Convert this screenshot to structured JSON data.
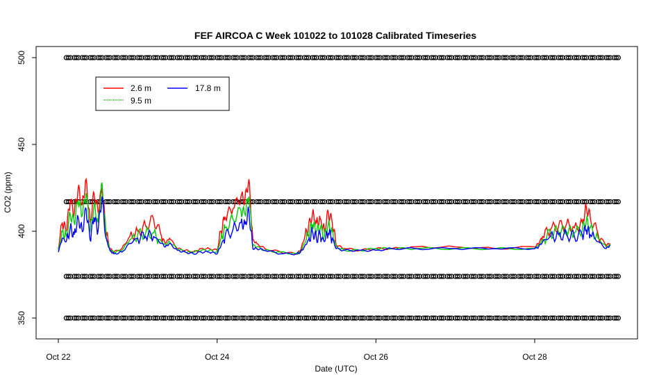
{
  "chart_data": {
    "type": "line",
    "title": "FEF AIRCOA C  Week 101022 to 101028  Calibrated Timeseries",
    "xlabel": "Date (UTC)",
    "ylabel": "CO2 (ppm)",
    "x_unit": "days (Oct 22 = 0)",
    "xlim": [
      -0.2,
      7.2
    ],
    "ylim": [
      337,
      505
    ],
    "x_ticks": [
      {
        "value": 0,
        "label": "Oct 22"
      },
      {
        "value": 2,
        "label": "Oct 24"
      },
      {
        "value": 4,
        "label": "Oct 26"
      },
      {
        "value": 6,
        "label": "Oct 28"
      }
    ],
    "y_ticks": [
      {
        "value": 350,
        "label": "350"
      },
      {
        "value": 400,
        "label": "400"
      },
      {
        "value": 450,
        "label": "450"
      },
      {
        "value": 500,
        "label": "500"
      }
    ],
    "legend": {
      "placement": "top-left",
      "entries": [
        {
          "name": "2.6 m",
          "color": "#ff0000"
        },
        {
          "name": "9.5 m",
          "color": "#00cc00"
        },
        {
          "name": "17.8 m",
          "color": "#0000ff"
        }
      ]
    },
    "grid": false,
    "calibration_marker_levels": [
      500,
      417,
      374,
      350
    ],
    "calibration_marker_x": {
      "start": 0.1,
      "end": 7.05,
      "step": 0.1
    },
    "series": [
      {
        "name": "2.6 m",
        "color": "#ff0000",
        "x": [
          0,
          0.05,
          0.1,
          0.15,
          0.2,
          0.25,
          0.3,
          0.35,
          0.4,
          0.45,
          0.5,
          0.55,
          0.6,
          0.65,
          0.7,
          0.8,
          0.9,
          1.0,
          1.1,
          1.2,
          1.3,
          1.35,
          1.4,
          1.5,
          1.6,
          1.7,
          1.8,
          1.9,
          2.0,
          2.05,
          2.1,
          2.2,
          2.3,
          2.35,
          2.4,
          2.45,
          2.5,
          2.6,
          2.8,
          3.0,
          3.05,
          3.1,
          3.15,
          3.2,
          3.25,
          3.3,
          3.35,
          3.4,
          3.45,
          3.5,
          3.6,
          3.8,
          4.0,
          4.2,
          4.5,
          5.0,
          5.5,
          6.0,
          6.05,
          6.1,
          6.2,
          6.3,
          6.4,
          6.5,
          6.6,
          6.65,
          6.7,
          6.8,
          6.9,
          6.95
        ],
        "values": [
          390,
          405,
          400,
          418,
          410,
          425,
          415,
          430,
          405,
          422,
          411,
          425,
          400,
          390,
          388,
          390,
          397,
          400,
          403,
          407,
          397,
          393,
          396,
          390,
          389,
          388,
          390,
          390,
          389,
          400,
          408,
          413,
          420,
          418,
          430,
          395,
          393,
          390,
          388,
          387,
          389,
          396,
          402,
          410,
          405,
          407,
          400,
          411,
          405,
          392,
          390,
          389,
          390,
          390,
          391,
          391,
          390,
          391,
          393,
          397,
          401,
          403,
          404,
          402,
          405,
          414,
          408,
          398,
          392,
          393
        ]
      },
      {
        "name": "9.5 m",
        "color": "#00cc00",
        "x": [
          0,
          0.05,
          0.1,
          0.15,
          0.2,
          0.25,
          0.3,
          0.35,
          0.4,
          0.45,
          0.5,
          0.55,
          0.6,
          0.65,
          0.7,
          0.8,
          0.9,
          1.0,
          1.1,
          1.2,
          1.3,
          1.35,
          1.4,
          1.5,
          1.6,
          1.7,
          1.8,
          1.9,
          2.0,
          2.05,
          2.1,
          2.2,
          2.3,
          2.35,
          2.4,
          2.45,
          2.5,
          2.6,
          2.8,
          3.0,
          3.05,
          3.1,
          3.15,
          3.2,
          3.25,
          3.3,
          3.35,
          3.4,
          3.45,
          3.5,
          3.6,
          3.8,
          4.0,
          4.2,
          4.5,
          5.0,
          5.5,
          6.0,
          6.05,
          6.1,
          6.2,
          6.3,
          6.4,
          6.5,
          6.6,
          6.65,
          6.7,
          6.8,
          6.9,
          6.95
        ],
        "values": [
          389,
          400,
          397,
          410,
          405,
          418,
          409,
          422,
          400,
          415,
          405,
          428,
          398,
          389,
          388,
          389,
          395,
          398,
          399,
          399,
          394,
          392,
          394,
          390,
          388,
          388,
          389,
          389,
          388,
          396,
          402,
          407,
          412,
          410,
          420,
          392,
          391,
          389,
          388,
          387,
          388,
          393,
          398,
          404,
          400,
          402,
          397,
          404,
          400,
          391,
          389,
          389,
          390,
          390,
          390,
          390,
          390,
          390,
          392,
          395,
          399,
          400,
          400,
          399,
          401,
          406,
          402,
          396,
          391,
          392
        ]
      },
      {
        "name": "17.8 m",
        "color": "#0000ff",
        "x": [
          0,
          0.05,
          0.1,
          0.15,
          0.2,
          0.25,
          0.3,
          0.35,
          0.4,
          0.45,
          0.5,
          0.55,
          0.6,
          0.65,
          0.7,
          0.8,
          0.9,
          1.0,
          1.1,
          1.2,
          1.3,
          1.35,
          1.4,
          1.5,
          1.6,
          1.7,
          1.8,
          1.9,
          2.0,
          2.05,
          2.1,
          2.2,
          2.3,
          2.35,
          2.4,
          2.45,
          2.5,
          2.6,
          2.8,
          3.0,
          3.05,
          3.1,
          3.15,
          3.2,
          3.25,
          3.3,
          3.35,
          3.4,
          3.45,
          3.5,
          3.6,
          3.8,
          4.0,
          4.2,
          4.5,
          5.0,
          5.5,
          6.0,
          6.05,
          6.1,
          6.2,
          6.3,
          6.4,
          6.5,
          6.6,
          6.65,
          6.7,
          6.8,
          6.9,
          6.95
        ],
        "values": [
          388,
          396,
          394,
          402,
          398,
          408,
          400,
          413,
          395,
          408,
          400,
          420,
          396,
          389,
          387,
          388,
          393,
          396,
          397,
          397,
          393,
          391,
          393,
          389,
          388,
          387,
          388,
          388,
          387,
          392,
          397,
          401,
          405,
          404,
          412,
          390,
          390,
          389,
          387,
          387,
          388,
          391,
          395,
          400,
          396,
          398,
          394,
          399,
          396,
          390,
          389,
          389,
          389,
          390,
          390,
          390,
          390,
          390,
          391,
          394,
          397,
          398,
          398,
          397,
          398,
          401,
          398,
          394,
          390,
          392
        ]
      }
    ]
  }
}
